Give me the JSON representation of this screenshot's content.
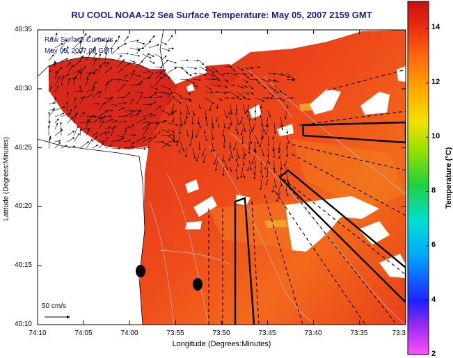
{
  "chart_data": {
    "type": "heatmap",
    "title": "RU COOL  NOAA-12  Sea Surface Temperature:  May 05, 2007 2159 GMT",
    "xlabel": "Longitude (Degrees:Minutes)",
    "ylabel": "Latitude (Degrees:Minutes)",
    "colorbar_label": "Temperature (°C)",
    "x_ticks": [
      "74:10",
      "74:05",
      "74:00",
      "73:55",
      "73:50",
      "73:45",
      "73:40",
      "73:35",
      "73:3"
    ],
    "y_ticks": [
      "40:35",
      "40:30",
      "40:25",
      "40:20",
      "40:15",
      "40:10"
    ],
    "xlim": [
      "74:10",
      "73:30"
    ],
    "ylim": [
      "40:10",
      "40:35"
    ],
    "colorbar_ticks": [
      14,
      12,
      10,
      8,
      6,
      4,
      2
    ],
    "colorbar_range": [
      2,
      15
    ],
    "legend": [
      "Raw Surface Currents",
      "May 05, 2007 00 GMT"
    ],
    "scale_label": "50 cm/s",
    "dominant_sst": 13.5,
    "colors": {
      "land": "#ffffff",
      "sea_warm": "#e8321c",
      "sea_mid": "#f0761e",
      "title": "#1a1a8c"
    }
  }
}
